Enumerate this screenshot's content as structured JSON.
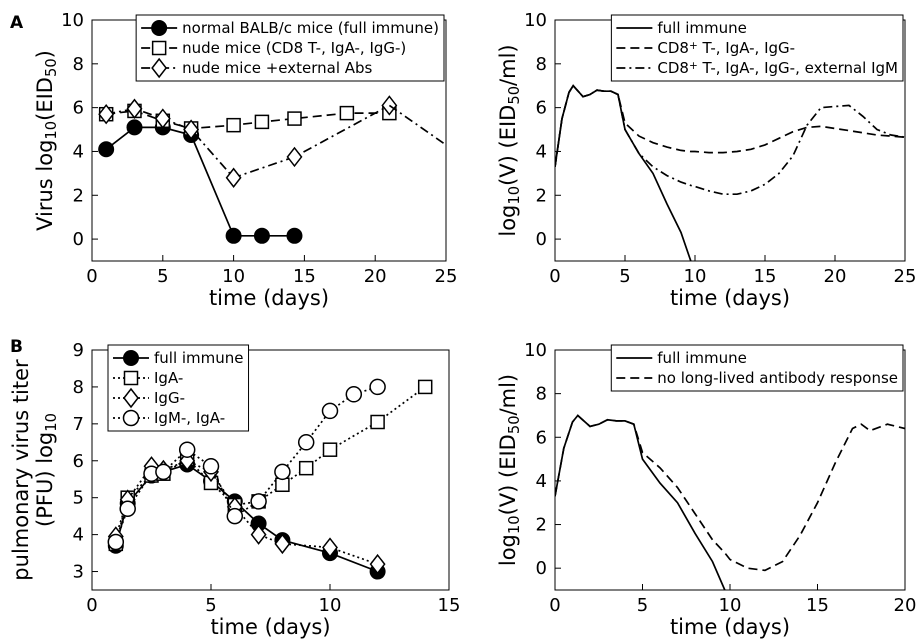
{
  "panel_labels": [
    "A",
    "B"
  ],
  "chart_data": [
    {
      "type": "line",
      "x_label": "time (days)",
      "y_label": [
        [
          "Virus log",
          "10",
          "(EID",
          "50",
          ")"
        ]
      ],
      "xlim": [
        0,
        25
      ],
      "ylim": [
        -1,
        10
      ],
      "xticks": [
        0,
        5,
        10,
        15,
        20,
        25
      ],
      "yticks": [
        0,
        2,
        4,
        6,
        8,
        10
      ],
      "legend": "upper right",
      "series": [
        {
          "name": "normal BALB/c mice (full immune)",
          "color": "#000000",
          "dash": "solid",
          "marker": "filled-circle",
          "x": [
            1,
            3,
            5,
            7,
            10,
            12,
            14.3
          ],
          "values": [
            4.1,
            5.1,
            5.1,
            4.75,
            0.15,
            0.15,
            0.15
          ]
        },
        {
          "name": "nude mice (CD8 T-, IgA-, IgG-)",
          "color": "#000000",
          "dash": "dashed",
          "marker": "square",
          "x": [
            1,
            3,
            5,
            7,
            10,
            12,
            14.3,
            18,
            21
          ],
          "values": [
            5.7,
            5.85,
            5.4,
            5.05,
            5.2,
            5.35,
            5.5,
            5.75,
            5.75
          ]
        },
        {
          "name": "nude mice +external Abs",
          "color": "#000000",
          "dash": "dashdot",
          "marker": "diamond",
          "x": [
            1,
            3,
            5,
            7,
            10,
            14.3,
            21
          ],
          "values": [
            5.7,
            5.95,
            5.5,
            5.0,
            2.8,
            3.75,
            6.1
          ]
        },
        {
          "color": "#000000",
          "dash": "dashdot",
          "x": [
            21,
            25
          ],
          "values": [
            6.1,
            4.3
          ]
        }
      ]
    },
    {
      "type": "line",
      "x_label": "time (days)",
      "y_label": [
        [
          "log",
          "10",
          "(V) (EID",
          "50",
          "/ml)"
        ]
      ],
      "xlim": [
        0,
        25
      ],
      "ylim": [
        -1,
        10
      ],
      "xticks": [
        0,
        5,
        10,
        15,
        20,
        25
      ],
      "yticks": [
        0,
        2,
        4,
        6,
        8,
        10
      ],
      "legend": "upper right",
      "x": [
        0,
        0.5,
        1,
        1.3,
        2,
        2.5,
        3,
        3.5,
        4,
        4.5,
        5,
        6,
        7,
        8,
        9,
        9.7,
        10,
        11,
        12,
        13,
        14,
        15,
        16,
        17,
        18,
        19,
        20,
        21,
        22,
        23,
        24,
        25
      ],
      "series": [
        {
          "name": "full immune",
          "color": "#000000",
          "dash": "solid",
          "values": [
            3.3,
            5.5,
            6.7,
            7.0,
            6.5,
            6.6,
            6.8,
            6.75,
            6.75,
            6.6,
            5.0,
            3.9,
            3.0,
            1.6,
            0.3,
            -1,
            null,
            null,
            null,
            null,
            null,
            null,
            null,
            null,
            null,
            null,
            null,
            null,
            null,
            null,
            null,
            null
          ]
        },
        {
          "name": [
            "CD8",
            "+",
            " T-, IgA-, IgG-"
          ],
          "color": "#000000",
          "dash": "dashed",
          "values": [
            3.3,
            5.5,
            6.7,
            7.0,
            6.5,
            6.6,
            6.8,
            6.75,
            6.75,
            6.6,
            5.3,
            4.7,
            4.4,
            4.2,
            4.05,
            4.0,
            4.0,
            3.95,
            3.95,
            4.0,
            4.1,
            4.3,
            4.6,
            4.9,
            5.1,
            5.15,
            5.05,
            4.95,
            4.85,
            4.75,
            4.7,
            4.65
          ]
        },
        {
          "name": [
            "CD8",
            "+",
            " T-, IgA-, IgG-, external IgM"
          ],
          "color": "#000000",
          "dash": "dashdot",
          "values": [
            3.3,
            5.5,
            6.7,
            7.0,
            6.5,
            6.6,
            6.8,
            6.75,
            6.75,
            6.6,
            5.0,
            3.9,
            3.3,
            2.9,
            2.6,
            2.45,
            2.4,
            2.2,
            2.05,
            2.05,
            2.2,
            2.5,
            3.0,
            3.8,
            5.2,
            6.0,
            6.05,
            6.1,
            5.6,
            5.0,
            4.75,
            4.65
          ]
        }
      ]
    },
    {
      "type": "line",
      "x_label": "time (days)",
      "y_label": [
        "pulmonary virus titer",
        [
          "(PFU) log",
          "10"
        ]
      ],
      "xlim": [
        0,
        15
      ],
      "ylim": [
        2.5,
        9
      ],
      "xticks": [
        0,
        5,
        10,
        15
      ],
      "yticks": [
        3,
        4,
        5,
        6,
        7,
        8,
        9
      ],
      "legend": "upper left",
      "series": [
        {
          "name": "full immune",
          "color": "#000000",
          "dash": "solid",
          "marker": "filled-circle",
          "x": [
            1,
            1.5,
            2.5,
            3,
            4,
            5,
            6,
            7,
            8,
            10,
            12
          ],
          "values": [
            3.7,
            4.85,
            5.6,
            5.7,
            5.9,
            5.45,
            4.9,
            4.3,
            3.85,
            3.5,
            3.0
          ]
        },
        {
          "name": "IgA-",
          "color": "#000000",
          "dash": "dotted",
          "marker": "square",
          "x": [
            1,
            1.5,
            2.5,
            3,
            4,
            5,
            6,
            7,
            8,
            9,
            10,
            12,
            14
          ],
          "values": [
            3.75,
            5.0,
            5.6,
            5.65,
            6.05,
            5.4,
            4.8,
            4.9,
            5.35,
            5.8,
            6.3,
            7.05,
            8.0
          ]
        },
        {
          "name": "IgG-",
          "color": "#000000",
          "dash": "dotted",
          "marker": "diamond",
          "x": [
            1,
            1.5,
            2.5,
            3,
            4,
            5,
            6,
            7,
            8,
            10,
            12
          ],
          "values": [
            3.95,
            4.95,
            5.85,
            5.75,
            6.0,
            5.7,
            4.75,
            4.0,
            3.75,
            3.65,
            3.2
          ]
        },
        {
          "name": "IgM-, IgA-",
          "color": "#000000",
          "dash": "dotted",
          "marker": "circle",
          "x": [
            1,
            1.5,
            2.5,
            3,
            4,
            5,
            6,
            7,
            8,
            9,
            10,
            11,
            12
          ],
          "values": [
            3.8,
            4.7,
            5.65,
            5.7,
            6.3,
            5.85,
            4.5,
            4.9,
            5.7,
            6.5,
            7.35,
            7.8,
            8.0
          ]
        }
      ]
    },
    {
      "type": "line",
      "x_label": "time (days)",
      "y_label": [
        [
          "log",
          "10",
          "(V) (EID",
          "50",
          "/ml)"
        ]
      ],
      "xlim": [
        0,
        20
      ],
      "ylim": [
        -1,
        10
      ],
      "xticks": [
        0,
        5,
        10,
        15,
        20
      ],
      "yticks": [
        0,
        2,
        4,
        6,
        8,
        10
      ],
      "legend": "upper right",
      "x": [
        0,
        0.5,
        1,
        1.3,
        2,
        2.5,
        3,
        3.5,
        4,
        4.5,
        5,
        6,
        7,
        8,
        9,
        9.7,
        10,
        11,
        12,
        13,
        14,
        15,
        16,
        17,
        17.5,
        18,
        19,
        20
      ],
      "series": [
        {
          "name": "full immune",
          "color": "#000000",
          "dash": "solid",
          "values": [
            3.3,
            5.5,
            6.7,
            7.0,
            6.5,
            6.6,
            6.8,
            6.75,
            6.75,
            6.6,
            5.0,
            3.9,
            3.0,
            1.6,
            0.3,
            -1,
            null,
            null,
            null,
            null,
            null,
            null,
            null,
            null,
            null,
            null,
            null,
            null
          ]
        },
        {
          "name": "no long-lived antibody response",
          "color": "#000000",
          "dash": "dashed",
          "values": [
            3.3,
            5.5,
            6.7,
            7.0,
            6.5,
            6.6,
            6.8,
            6.75,
            6.75,
            6.6,
            5.3,
            4.6,
            3.7,
            2.5,
            1.3,
            0.7,
            0.4,
            0.0,
            -0.1,
            0.3,
            1.5,
            3.0,
            4.8,
            6.4,
            6.6,
            6.3,
            6.6,
            6.4
          ]
        }
      ]
    }
  ]
}
